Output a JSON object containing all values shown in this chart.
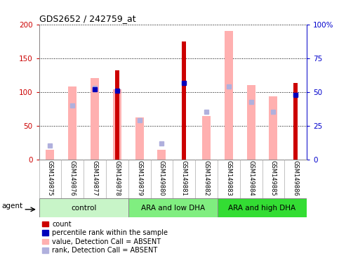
{
  "title": "GDS2652 / 242759_at",
  "samples": [
    "GSM149875",
    "GSM149876",
    "GSM149877",
    "GSM149878",
    "GSM149879",
    "GSM149880",
    "GSM149881",
    "GSM149882",
    "GSM149883",
    "GSM149884",
    "GSM149885",
    "GSM149886"
  ],
  "groups": [
    {
      "label": "control",
      "color": "#c8f5c8",
      "start": 0,
      "end": 4
    },
    {
      "label": "ARA and low DHA",
      "color": "#80ee80",
      "start": 4,
      "end": 8
    },
    {
      "label": "ARA and high DHA",
      "color": "#33dd33",
      "start": 8,
      "end": 12
    }
  ],
  "count_values": [
    0,
    0,
    0,
    132,
    0,
    0,
    175,
    0,
    0,
    0,
    0,
    113
  ],
  "percentile_values": [
    0,
    0,
    104,
    102,
    0,
    0,
    113,
    0,
    0,
    0,
    0,
    95
  ],
  "absent_value_bars": [
    14,
    108,
    120,
    104,
    62,
    14,
    0,
    64,
    190,
    110,
    93,
    0
  ],
  "absent_rank_vals": [
    20,
    80,
    106,
    0,
    58,
    24,
    0,
    70,
    108,
    85,
    70,
    96
  ],
  "ylim_left": [
    0,
    200
  ],
  "ylim_right": [
    0,
    100
  ],
  "yticks_left": [
    0,
    50,
    100,
    150,
    200
  ],
  "yticks_right": [
    0,
    25,
    50,
    75,
    100
  ],
  "ytick_labels_right": [
    "0",
    "25",
    "50",
    "75",
    "100%"
  ],
  "ylabel_left_color": "#cc0000",
  "ylabel_right_color": "#0000cc",
  "grid_color": "#000000",
  "count_color": "#cc0000",
  "percentile_color": "#0000bb",
  "absent_value_color": "#ffb0b0",
  "absent_rank_color": "#b0b0dd",
  "background_xlabel": "#d0d0d0",
  "agent_label": "agent",
  "legend_items": [
    {
      "color": "#cc0000",
      "label": "count"
    },
    {
      "color": "#0000bb",
      "label": "percentile rank within the sample"
    },
    {
      "color": "#ffb0b0",
      "label": "value, Detection Call = ABSENT"
    },
    {
      "color": "#b0b0dd",
      "label": "rank, Detection Call = ABSENT"
    }
  ]
}
